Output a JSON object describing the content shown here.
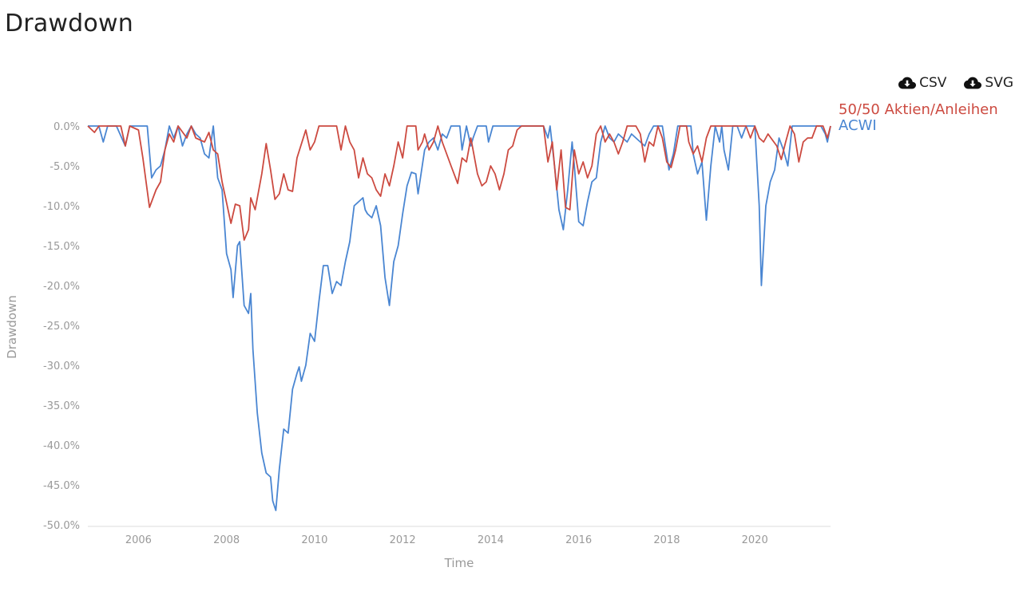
{
  "title": "Drawdown",
  "downloads": [
    {
      "label": "CSV",
      "icon": "cloud-download-icon"
    },
    {
      "label": "SVG",
      "icon": "cloud-download-icon"
    }
  ],
  "colors": {
    "series_5050": "#cc4a40",
    "series_acwi": "#4a86d2",
    "axis": "#dddddd",
    "tick": "#999999"
  },
  "chart_data": {
    "type": "line",
    "title": "Drawdown",
    "xlabel": "Time",
    "ylabel": "Drawdown",
    "xlim": [
      2004.85,
      2021.72
    ],
    "ylim": [
      -50,
      0
    ],
    "xticks": [
      2006,
      2008,
      2010,
      2012,
      2014,
      2016,
      2018,
      2020
    ],
    "yticks": [
      0,
      -5,
      -10,
      -15,
      -20,
      -25,
      -30,
      -35,
      -40,
      -45,
      -50
    ],
    "yformat": "percent_1dp",
    "legend": "right, at line ends",
    "series": [
      {
        "name": "50/50 Aktien/Anleihen",
        "color": "#cc4a40",
        "points": [
          [
            2004.85,
            0
          ],
          [
            2005.0,
            -0.8
          ],
          [
            2005.1,
            0
          ],
          [
            2005.6,
            0
          ],
          [
            2005.7,
            -2.5
          ],
          [
            2005.8,
            0
          ],
          [
            2006.0,
            -0.5
          ],
          [
            2006.1,
            -4
          ],
          [
            2006.25,
            -10.2
          ],
          [
            2006.4,
            -8
          ],
          [
            2006.5,
            -7
          ],
          [
            2006.6,
            -3
          ],
          [
            2006.7,
            -1
          ],
          [
            2006.8,
            -2
          ],
          [
            2006.9,
            0
          ],
          [
            2007.1,
            -1.5
          ],
          [
            2007.2,
            0
          ],
          [
            2007.3,
            -1.5
          ],
          [
            2007.5,
            -2
          ],
          [
            2007.6,
            -0.8
          ],
          [
            2007.7,
            -3
          ],
          [
            2007.8,
            -3.5
          ],
          [
            2007.9,
            -7
          ],
          [
            2008.1,
            -12.2
          ],
          [
            2008.2,
            -9.8
          ],
          [
            2008.3,
            -10
          ],
          [
            2008.4,
            -14.3
          ],
          [
            2008.5,
            -13
          ],
          [
            2008.55,
            -9
          ],
          [
            2008.65,
            -10.5
          ],
          [
            2008.8,
            -6
          ],
          [
            2008.9,
            -2.2
          ],
          [
            2009.0,
            -5.5
          ],
          [
            2009.1,
            -9.2
          ],
          [
            2009.2,
            -8.5
          ],
          [
            2009.3,
            -6
          ],
          [
            2009.4,
            -8
          ],
          [
            2009.5,
            -8.2
          ],
          [
            2009.6,
            -4
          ],
          [
            2009.8,
            -0.5
          ],
          [
            2009.9,
            -3
          ],
          [
            2010.0,
            -2
          ],
          [
            2010.1,
            0
          ],
          [
            2010.5,
            0
          ],
          [
            2010.6,
            -3
          ],
          [
            2010.7,
            0
          ],
          [
            2010.8,
            -2
          ],
          [
            2010.9,
            -3
          ],
          [
            2011.0,
            -6.5
          ],
          [
            2011.1,
            -4
          ],
          [
            2011.2,
            -6
          ],
          [
            2011.3,
            -6.5
          ],
          [
            2011.4,
            -8
          ],
          [
            2011.5,
            -8.8
          ],
          [
            2011.6,
            -6
          ],
          [
            2011.7,
            -7.5
          ],
          [
            2011.8,
            -5
          ],
          [
            2011.9,
            -2
          ],
          [
            2012.0,
            -4
          ],
          [
            2012.1,
            0
          ],
          [
            2012.3,
            0
          ],
          [
            2012.35,
            -3
          ],
          [
            2012.45,
            -2
          ],
          [
            2012.5,
            -1
          ],
          [
            2012.6,
            -3
          ],
          [
            2012.7,
            -2
          ],
          [
            2012.8,
            0
          ],
          [
            2012.9,
            -2
          ],
          [
            2013.1,
            -5
          ],
          [
            2013.25,
            -7.2
          ],
          [
            2013.35,
            -4
          ],
          [
            2013.45,
            -4.5
          ],
          [
            2013.55,
            -1.5
          ],
          [
            2013.7,
            -6
          ],
          [
            2013.8,
            -7.5
          ],
          [
            2013.9,
            -7
          ],
          [
            2014.0,
            -5
          ],
          [
            2014.1,
            -6
          ],
          [
            2014.2,
            -8
          ],
          [
            2014.3,
            -6
          ],
          [
            2014.4,
            -3
          ],
          [
            2014.5,
            -2.5
          ],
          [
            2014.6,
            -0.5
          ],
          [
            2014.7,
            0
          ],
          [
            2015.2,
            0
          ],
          [
            2015.3,
            -4.5
          ],
          [
            2015.4,
            -2
          ],
          [
            2015.5,
            -8
          ],
          [
            2015.6,
            -3
          ],
          [
            2015.7,
            -10.2
          ],
          [
            2015.8,
            -10.5
          ],
          [
            2015.9,
            -3
          ],
          [
            2016.0,
            -6
          ],
          [
            2016.1,
            -4.5
          ],
          [
            2016.2,
            -6.5
          ],
          [
            2016.3,
            -5
          ],
          [
            2016.4,
            -1
          ],
          [
            2016.5,
            0
          ],
          [
            2016.6,
            -2
          ],
          [
            2016.7,
            -1
          ],
          [
            2016.8,
            -2
          ],
          [
            2016.9,
            -3.5
          ],
          [
            2017.0,
            -2
          ],
          [
            2017.1,
            0
          ],
          [
            2017.3,
            0
          ],
          [
            2017.4,
            -1
          ],
          [
            2017.5,
            -4.5
          ],
          [
            2017.6,
            -2
          ],
          [
            2017.7,
            -2.5
          ],
          [
            2017.8,
            0
          ],
          [
            2017.9,
            -1.5
          ],
          [
            2018.0,
            -4.5
          ],
          [
            2018.1,
            -5.2
          ],
          [
            2018.2,
            -3
          ],
          [
            2018.3,
            0
          ],
          [
            2018.45,
            0
          ],
          [
            2018.5,
            -2
          ],
          [
            2018.6,
            -3.5
          ],
          [
            2018.7,
            -2.5
          ],
          [
            2018.8,
            -4.5
          ],
          [
            2018.9,
            -1.5
          ],
          [
            2019.0,
            0
          ],
          [
            2019.8,
            0
          ],
          [
            2019.9,
            -1.5
          ],
          [
            2020.0,
            0
          ],
          [
            2020.1,
            -1.5
          ],
          [
            2020.2,
            -2
          ],
          [
            2020.3,
            -1
          ],
          [
            2020.5,
            -2.5
          ],
          [
            2020.6,
            -4.2
          ],
          [
            2020.7,
            -2
          ],
          [
            2020.8,
            0
          ],
          [
            2020.9,
            -1
          ],
          [
            2021.0,
            -4.5
          ],
          [
            2021.1,
            -2
          ],
          [
            2021.2,
            -1.5
          ],
          [
            2021.3,
            -1.5
          ],
          [
            2021.4,
            0
          ],
          [
            2021.55,
            0
          ],
          [
            2021.65,
            -1.5
          ],
          [
            2021.72,
            0
          ]
        ]
      },
      {
        "name": "ACWI",
        "color": "#4a86d2",
        "points": [
          [
            2004.85,
            0
          ],
          [
            2005.1,
            0
          ],
          [
            2005.2,
            -2
          ],
          [
            2005.3,
            0
          ],
          [
            2005.5,
            0
          ],
          [
            2005.7,
            -2.5
          ],
          [
            2005.8,
            0
          ],
          [
            2006.2,
            0
          ],
          [
            2006.3,
            -6.5
          ],
          [
            2006.4,
            -5.5
          ],
          [
            2006.5,
            -5
          ],
          [
            2006.6,
            -3
          ],
          [
            2006.7,
            0
          ],
          [
            2006.8,
            -1.5
          ],
          [
            2006.9,
            0
          ],
          [
            2007.0,
            -2.5
          ],
          [
            2007.1,
            -1
          ],
          [
            2007.2,
            0
          ],
          [
            2007.3,
            -1
          ],
          [
            2007.4,
            -1.5
          ],
          [
            2007.5,
            -3.5
          ],
          [
            2007.6,
            -4
          ],
          [
            2007.7,
            0
          ],
          [
            2007.8,
            -6.5
          ],
          [
            2007.9,
            -8
          ],
          [
            2008.0,
            -16
          ],
          [
            2008.1,
            -18
          ],
          [
            2008.15,
            -21.5
          ],
          [
            2008.25,
            -15
          ],
          [
            2008.3,
            -14.5
          ],
          [
            2008.4,
            -22.5
          ],
          [
            2008.5,
            -23.5
          ],
          [
            2008.55,
            -21
          ],
          [
            2008.6,
            -28
          ],
          [
            2008.7,
            -36
          ],
          [
            2008.8,
            -41
          ],
          [
            2008.9,
            -43.5
          ],
          [
            2009.0,
            -44
          ],
          [
            2009.05,
            -47
          ],
          [
            2009.12,
            -48.2
          ],
          [
            2009.2,
            -43
          ],
          [
            2009.3,
            -38
          ],
          [
            2009.4,
            -38.5
          ],
          [
            2009.5,
            -33
          ],
          [
            2009.6,
            -31
          ],
          [
            2009.65,
            -30.2
          ],
          [
            2009.7,
            -32
          ],
          [
            2009.8,
            -30
          ],
          [
            2009.9,
            -26
          ],
          [
            2010.0,
            -27
          ],
          [
            2010.1,
            -22
          ],
          [
            2010.2,
            -17.5
          ],
          [
            2010.3,
            -17.5
          ],
          [
            2010.4,
            -21
          ],
          [
            2010.5,
            -19.5
          ],
          [
            2010.6,
            -20
          ],
          [
            2010.7,
            -17
          ],
          [
            2010.8,
            -14.5
          ],
          [
            2010.9,
            -10
          ],
          [
            2011.0,
            -9.5
          ],
          [
            2011.1,
            -9
          ],
          [
            2011.15,
            -10.5
          ],
          [
            2011.2,
            -11
          ],
          [
            2011.3,
            -11.5
          ],
          [
            2011.4,
            -10
          ],
          [
            2011.5,
            -12.5
          ],
          [
            2011.6,
            -19
          ],
          [
            2011.7,
            -22.5
          ],
          [
            2011.8,
            -17
          ],
          [
            2011.9,
            -15
          ],
          [
            2012.0,
            -11
          ],
          [
            2012.1,
            -7.5
          ],
          [
            2012.2,
            -5.8
          ],
          [
            2012.3,
            -6
          ],
          [
            2012.35,
            -8.5
          ],
          [
            2012.5,
            -3
          ],
          [
            2012.6,
            -2
          ],
          [
            2012.7,
            -1.5
          ],
          [
            2012.8,
            -3
          ],
          [
            2012.9,
            -1
          ],
          [
            2013.0,
            -1.5
          ],
          [
            2013.1,
            0
          ],
          [
            2013.3,
            0
          ],
          [
            2013.35,
            -3
          ],
          [
            2013.45,
            0
          ],
          [
            2013.55,
            -2.5
          ],
          [
            2013.6,
            -1.5
          ],
          [
            2013.7,
            0
          ],
          [
            2013.9,
            0
          ],
          [
            2013.95,
            -2
          ],
          [
            2014.05,
            0
          ],
          [
            2015.2,
            0
          ],
          [
            2015.3,
            -1.5
          ],
          [
            2015.35,
            0
          ],
          [
            2015.45,
            -5
          ],
          [
            2015.55,
            -10.5
          ],
          [
            2015.65,
            -13
          ],
          [
            2015.75,
            -8
          ],
          [
            2015.85,
            -2
          ],
          [
            2015.9,
            -5
          ],
          [
            2016.0,
            -12
          ],
          [
            2016.1,
            -12.5
          ],
          [
            2016.2,
            -9.5
          ],
          [
            2016.3,
            -7
          ],
          [
            2016.4,
            -6.5
          ],
          [
            2016.5,
            -2
          ],
          [
            2016.6,
            0
          ],
          [
            2016.7,
            -1.5
          ],
          [
            2016.8,
            -2
          ],
          [
            2016.9,
            -1
          ],
          [
            2017.0,
            -1.5
          ],
          [
            2017.1,
            -2
          ],
          [
            2017.2,
            -1
          ],
          [
            2017.3,
            -1.5
          ],
          [
            2017.4,
            -2
          ],
          [
            2017.5,
            -2.5
          ],
          [
            2017.6,
            -1
          ],
          [
            2017.7,
            0
          ],
          [
            2017.9,
            0
          ],
          [
            2018.05,
            -5.5
          ],
          [
            2018.15,
            -3.5
          ],
          [
            2018.25,
            0
          ],
          [
            2018.55,
            0
          ],
          [
            2018.6,
            -3.5
          ],
          [
            2018.7,
            -6
          ],
          [
            2018.8,
            -4.5
          ],
          [
            2018.9,
            -11.8
          ],
          [
            2019.0,
            -5
          ],
          [
            2019.1,
            0
          ],
          [
            2019.2,
            -2
          ],
          [
            2019.25,
            0
          ],
          [
            2019.3,
            -3
          ],
          [
            2019.4,
            -5.5
          ],
          [
            2019.5,
            0
          ],
          [
            2019.6,
            0
          ],
          [
            2019.7,
            -1.5
          ],
          [
            2019.8,
            0
          ],
          [
            2020.0,
            0
          ],
          [
            2020.1,
            -10
          ],
          [
            2020.15,
            -20
          ],
          [
            2020.25,
            -10
          ],
          [
            2020.35,
            -7
          ],
          [
            2020.45,
            -5.5
          ],
          [
            2020.55,
            -1.5
          ],
          [
            2020.65,
            -3
          ],
          [
            2020.75,
            -5
          ],
          [
            2020.85,
            0
          ],
          [
            2021.5,
            0
          ],
          [
            2021.6,
            -1
          ],
          [
            2021.65,
            -2
          ],
          [
            2021.72,
            0
          ]
        ]
      }
    ]
  }
}
